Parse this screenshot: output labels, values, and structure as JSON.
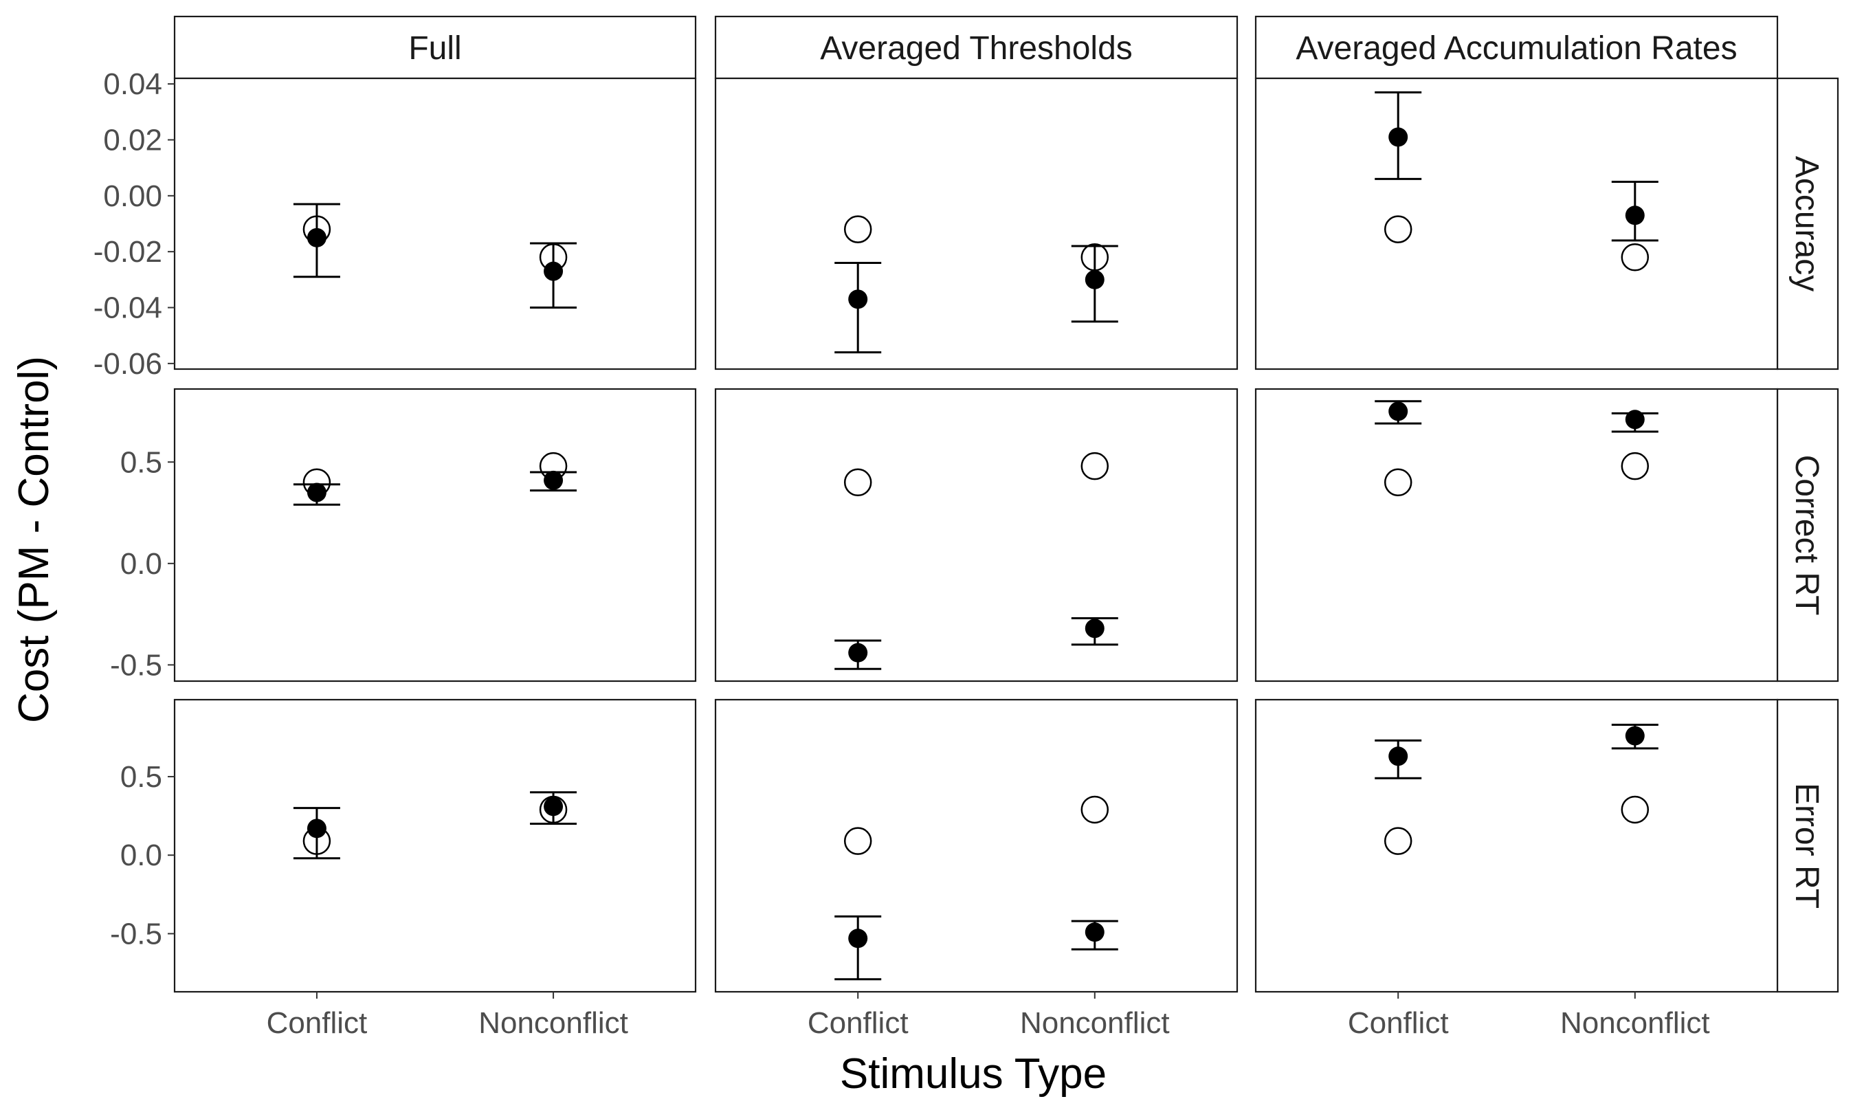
{
  "chart_data": {
    "type": "scatter",
    "xlabel": "Stimulus Type",
    "ylabel": "Cost (PM - Control)",
    "categories": [
      "Conflict",
      "Nonconflict"
    ],
    "columns": [
      "Full",
      "Averaged Thresholds",
      "Averaged Accumulation Rates"
    ],
    "rows": [
      {
        "label": "Accuracy",
        "ylim": [
          -0.062,
          0.042
        ],
        "ticks": [
          0.04,
          0.02,
          0.0,
          -0.02,
          -0.04,
          -0.06
        ],
        "tick_labels": [
          "0.04",
          "0.02",
          "0.00",
          "-0.02",
          "-0.04",
          "-0.06"
        ]
      },
      {
        "label": "Correct RT",
        "ylim": [
          -0.58,
          0.86
        ],
        "ticks": [
          0.5,
          0.0,
          -0.5
        ],
        "tick_labels": [
          "0.5",
          "0.0",
          "-0.5"
        ]
      },
      {
        "label": "Error RT",
        "ylim": [
          -0.87,
          0.99
        ],
        "ticks": [
          0.5,
          0.0,
          -0.5
        ],
        "tick_labels": [
          "0.5",
          "0.0",
          "-0.5"
        ]
      }
    ],
    "series": [
      {
        "marker": "open-circle",
        "description": "observed"
      },
      {
        "marker": "filled-circle-with-errorbar",
        "description": "model"
      }
    ],
    "panels": [
      {
        "row": 0,
        "col": 0,
        "observed": [
          -0.012,
          -0.022
        ],
        "model": [
          -0.015,
          -0.027
        ],
        "err_low": [
          -0.029,
          -0.04
        ],
        "err_high": [
          -0.003,
          -0.017
        ]
      },
      {
        "row": 0,
        "col": 1,
        "observed": [
          -0.012,
          -0.022
        ],
        "model": [
          -0.037,
          -0.03
        ],
        "err_low": [
          -0.056,
          -0.045
        ],
        "err_high": [
          -0.024,
          -0.018
        ]
      },
      {
        "row": 0,
        "col": 2,
        "observed": [
          -0.012,
          -0.022
        ],
        "model": [
          0.021,
          -0.007
        ],
        "err_low": [
          0.006,
          -0.016
        ],
        "err_high": [
          0.037,
          0.005
        ]
      },
      {
        "row": 1,
        "col": 0,
        "observed": [
          0.4,
          0.48
        ],
        "model": [
          0.35,
          0.41
        ],
        "err_low": [
          0.29,
          0.36
        ],
        "err_high": [
          0.39,
          0.45
        ]
      },
      {
        "row": 1,
        "col": 1,
        "observed": [
          0.4,
          0.48
        ],
        "model": [
          -0.44,
          -0.32
        ],
        "err_low": [
          -0.52,
          -0.4
        ],
        "err_high": [
          -0.38,
          -0.27
        ]
      },
      {
        "row": 1,
        "col": 2,
        "observed": [
          0.4,
          0.48
        ],
        "model": [
          0.75,
          0.71
        ],
        "err_low": [
          0.69,
          0.65
        ],
        "err_high": [
          0.8,
          0.74
        ]
      },
      {
        "row": 2,
        "col": 0,
        "observed": [
          0.09,
          0.29
        ],
        "model": [
          0.17,
          0.31
        ],
        "err_low": [
          -0.02,
          0.2
        ],
        "err_high": [
          0.3,
          0.4
        ]
      },
      {
        "row": 2,
        "col": 1,
        "observed": [
          0.09,
          0.29
        ],
        "model": [
          -0.53,
          -0.49
        ],
        "err_low": [
          -0.79,
          -0.6
        ],
        "err_high": [
          -0.39,
          -0.42
        ]
      },
      {
        "row": 2,
        "col": 2,
        "observed": [
          0.09,
          0.29
        ],
        "model": [
          0.63,
          0.76
        ],
        "err_low": [
          0.49,
          0.68
        ],
        "err_high": [
          0.73,
          0.83
        ]
      }
    ],
    "grid": false,
    "legend": "none"
  }
}
